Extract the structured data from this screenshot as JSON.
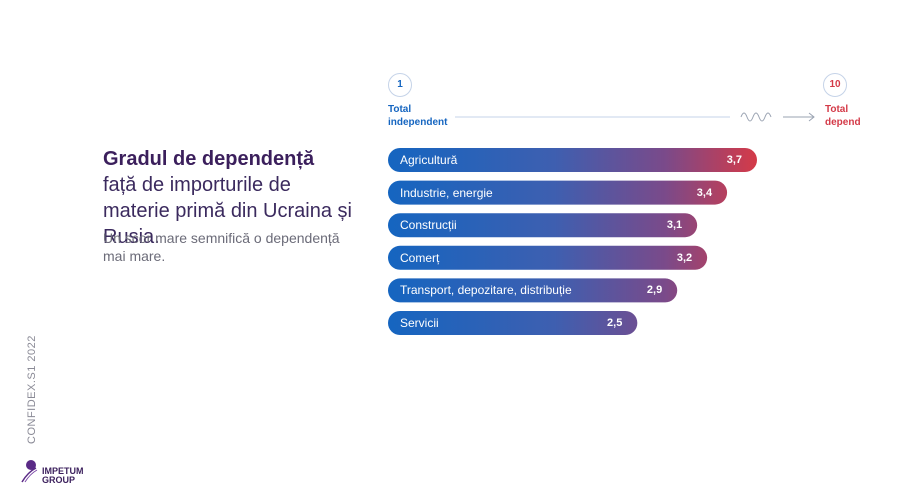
{
  "headline": {
    "bold": "Gradul de dependență",
    "rest": " față de importurile de materie primă din Ucraina și Rusia."
  },
  "subtext": "Un scor mare semnifică o dependență mai mare.",
  "source": "CONFIDEX.S1 2022",
  "logo": {
    "line1": "IMPETUM",
    "line2": "GROUP"
  },
  "scale": {
    "min_value": "1",
    "min_label_line1": "Total",
    "min_label_line2": "independent",
    "max_value": "10",
    "max_label_line1": "Total",
    "max_label_line2": "depend"
  },
  "colors": {
    "blue": "#1565c0",
    "red": "#d43a48",
    "purple": "#3b1f5c",
    "scale_line": "#c5d3e8"
  },
  "chart_data": {
    "type": "bar",
    "orientation": "horizontal",
    "categories": [
      "Agricultură",
      "Industrie, energie",
      "Construcții",
      "Comerț",
      "Transport, depozitare, distribuție",
      "Servicii"
    ],
    "values": [
      3.7,
      3.4,
      3.1,
      3.2,
      2.9,
      2.5
    ],
    "value_labels": [
      "3,7",
      "3,4",
      "3,1",
      "3,2",
      "2,9",
      "2,5"
    ],
    "xlim": [
      1,
      10
    ],
    "title": "Gradul de dependență față de importurile de materie primă din Ucraina și Rusia.",
    "grid": false,
    "legend": "none"
  }
}
